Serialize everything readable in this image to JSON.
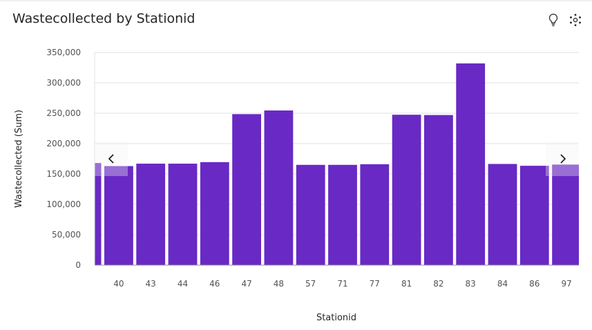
{
  "header": {
    "title": "Wastecollected by Stationid",
    "insight_icon": "lightbulb-icon",
    "settings_icon": "network-dots-icon"
  },
  "chart_data": {
    "type": "bar",
    "xlabel": "Stationid",
    "ylabel": "Wastecollected (Sum)",
    "ylim": [
      0,
      350000
    ],
    "yticks": [
      0,
      50000,
      100000,
      150000,
      200000,
      250000,
      300000,
      350000
    ],
    "ytick_labels": [
      "0",
      "50,000",
      "100,000",
      "150,000",
      "200,000",
      "250,000",
      "300,000",
      "350,000"
    ],
    "categories": [
      "",
      "40",
      "43",
      "44",
      "46",
      "47",
      "48",
      "57",
      "71",
      "77",
      "81",
      "82",
      "83",
      "84",
      "86",
      "97"
    ],
    "values": [
      168000,
      163000,
      167000,
      167000,
      169500,
      248500,
      254500,
      165000,
      165000,
      166000,
      247500,
      247000,
      332000,
      166500,
      163500,
      165500
    ],
    "bar_color": "#6929c4",
    "grid": true,
    "legend": "none"
  },
  "navigation": {
    "prev_icon": "chevron-left-icon",
    "next_icon": "chevron-right-icon"
  }
}
